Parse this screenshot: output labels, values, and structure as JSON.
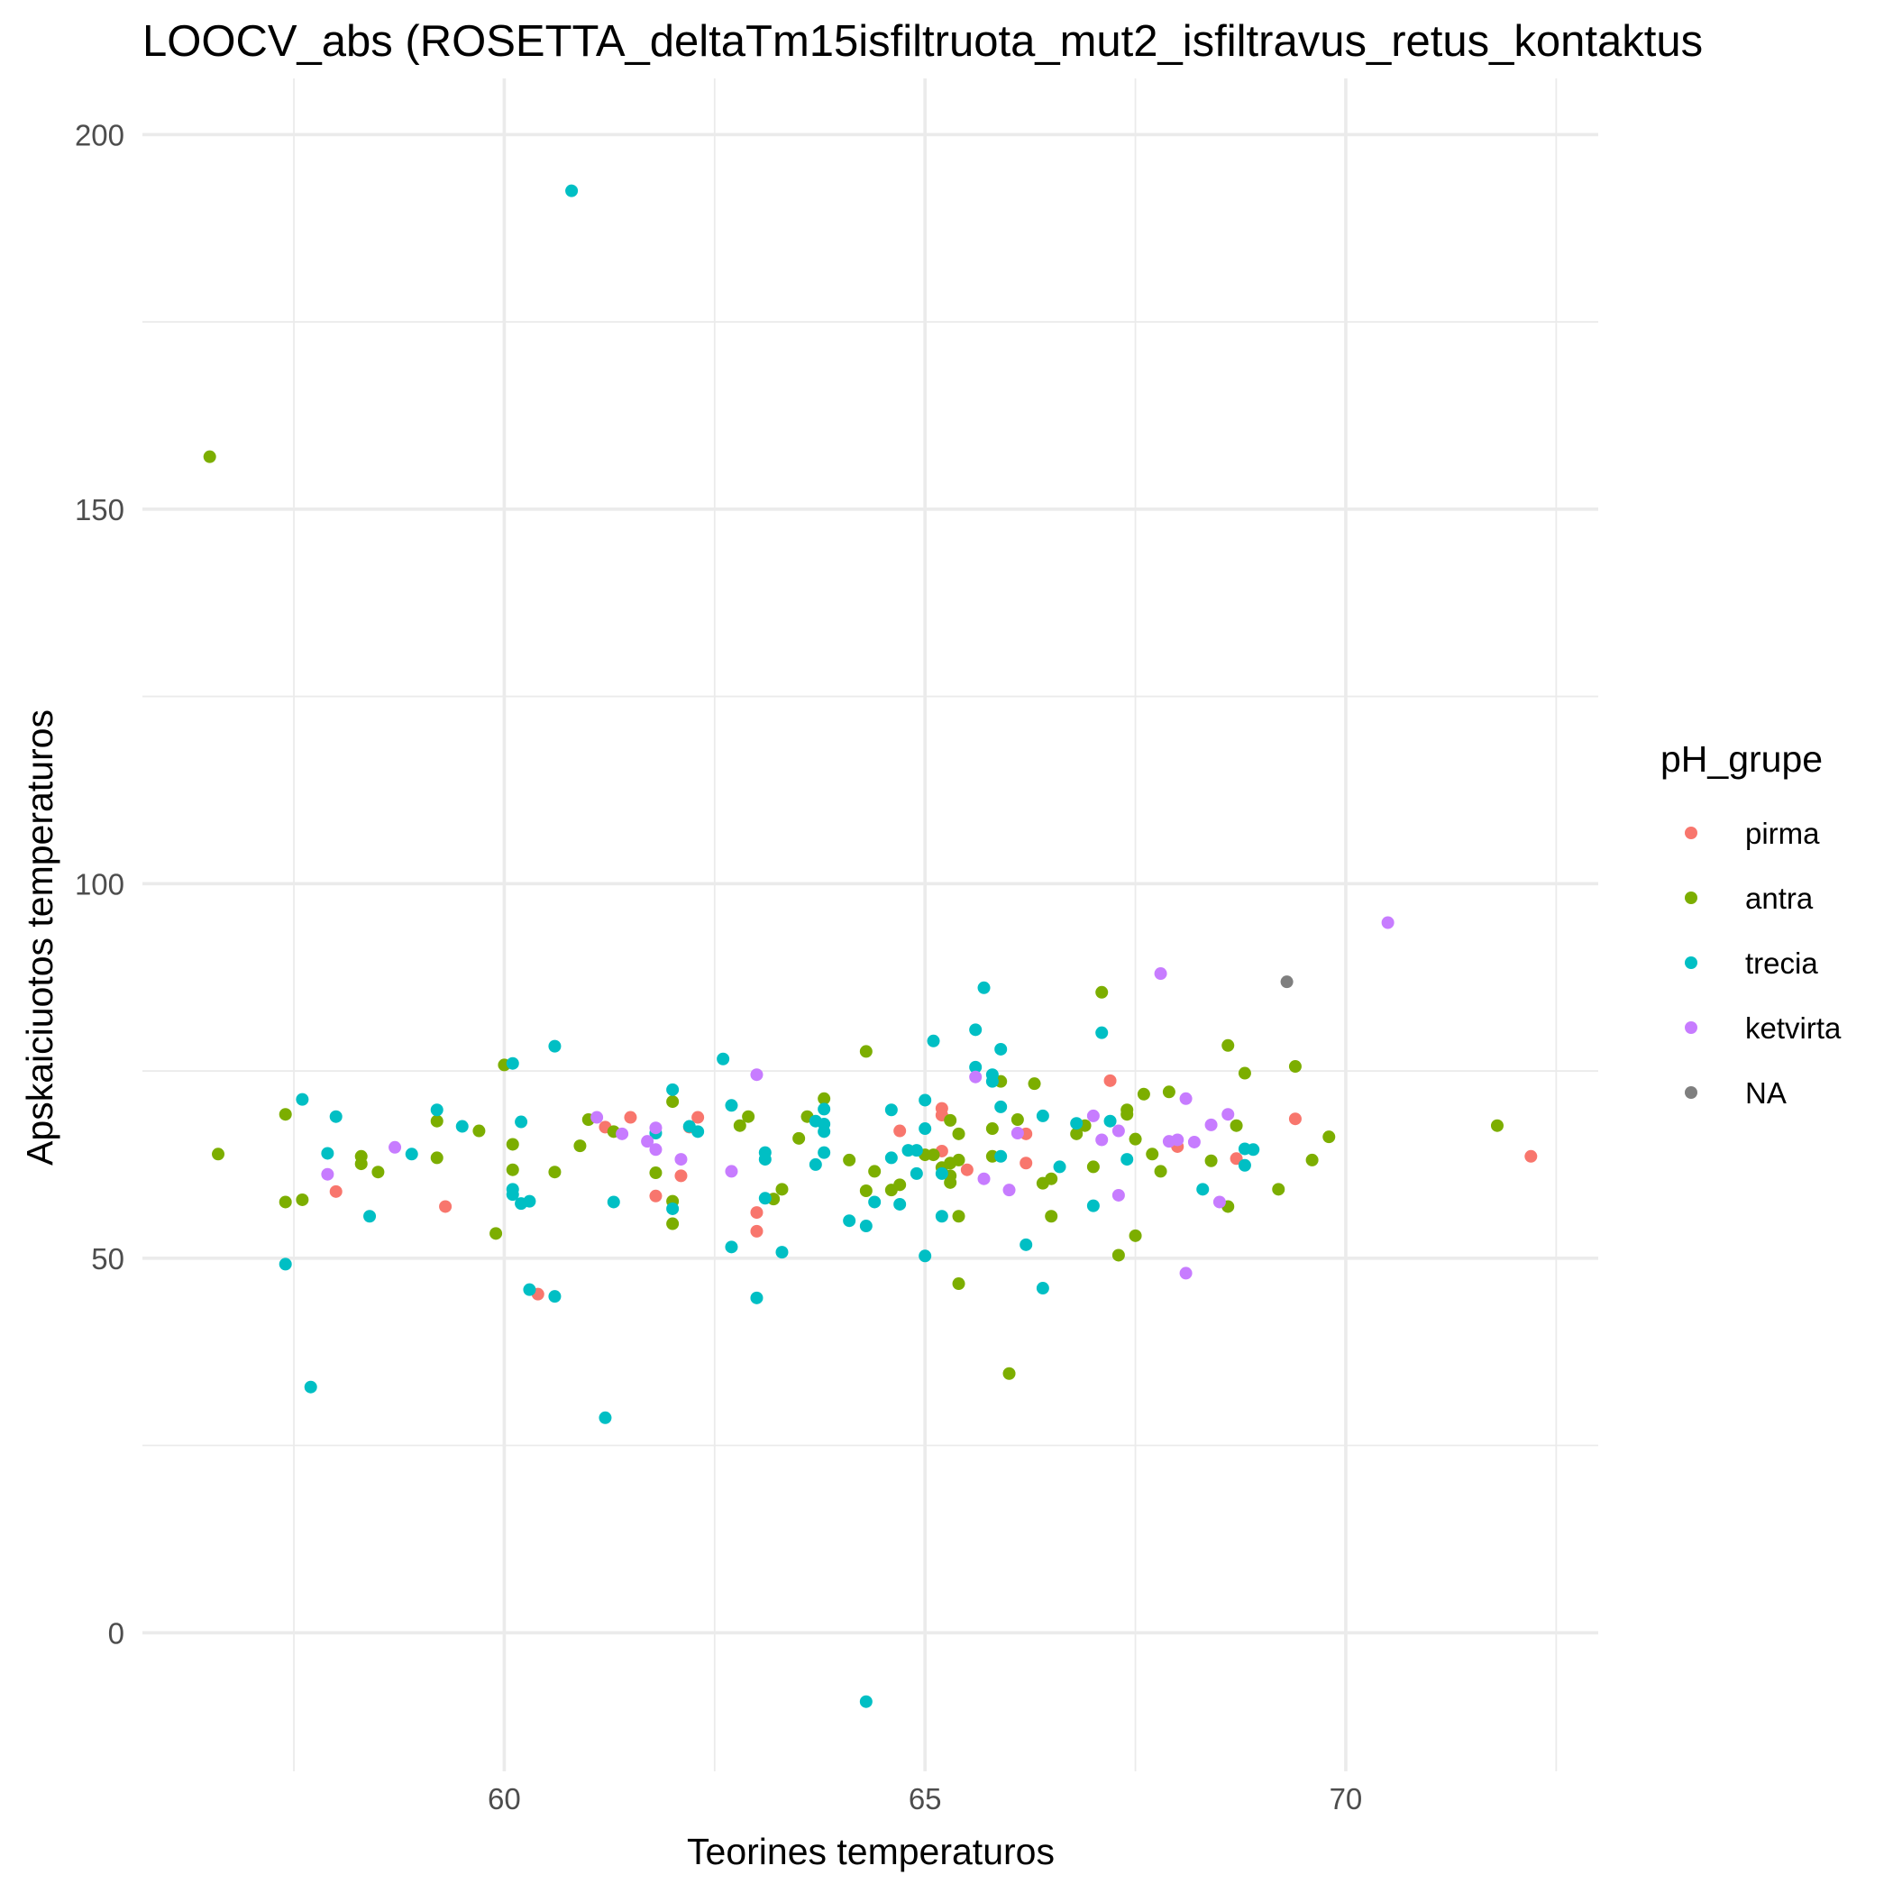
{
  "chart_data": {
    "type": "scatter",
    "title": "LOOCV_abs (ROSETTA_deltaTm15isfiltruota_mut2_isfiltravus_retus_kontaktus",
    "xlabel": "Teorines temperaturos",
    "ylabel": "Apskaiciuotos temperaturos",
    "xlim": [
      55.7,
      73.0
    ],
    "ylim": [
      -18.5,
      207.5
    ],
    "x_ticks": [
      60,
      65,
      70
    ],
    "y_ticks": [
      0,
      50,
      100,
      150,
      200
    ],
    "grid": true,
    "legend": {
      "title": "pH_grupe",
      "position": "right",
      "entries": [
        "pirma",
        "antra",
        "trecia",
        "ketvirta",
        "NA"
      ]
    },
    "series": [
      {
        "name": "pirma",
        "color": "#F8766D",
        "points": [
          [
            58.0,
            58.9
          ],
          [
            59.3,
            56.9
          ],
          [
            60.4,
            45.2
          ],
          [
            61.2,
            67.5
          ],
          [
            61.5,
            68.8
          ],
          [
            61.8,
            58.3
          ],
          [
            62.1,
            61.0
          ],
          [
            62.2,
            67.5
          ],
          [
            62.3,
            68.8
          ],
          [
            63.0,
            56.1
          ],
          [
            63.0,
            53.6
          ],
          [
            64.7,
            67.0
          ],
          [
            65.2,
            70.0
          ],
          [
            65.2,
            69.1
          ],
          [
            65.2,
            64.3
          ],
          [
            65.5,
            61.8
          ],
          [
            66.2,
            66.6
          ],
          [
            66.2,
            62.7
          ],
          [
            67.2,
            73.7
          ],
          [
            68.0,
            64.9
          ],
          [
            68.7,
            63.3
          ],
          [
            69.4,
            68.6
          ],
          [
            72.2,
            63.6
          ]
        ]
      },
      {
        "name": "antra",
        "color": "#7CAE00",
        "points": [
          [
            56.5,
            157.0
          ],
          [
            56.6,
            63.9
          ],
          [
            57.4,
            69.2
          ],
          [
            57.4,
            57.5
          ],
          [
            57.6,
            57.8
          ],
          [
            58.3,
            62.6
          ],
          [
            58.3,
            63.6
          ],
          [
            58.5,
            61.5
          ],
          [
            59.2,
            68.3
          ],
          [
            59.2,
            63.4
          ],
          [
            59.7,
            67.0
          ],
          [
            59.9,
            53.3
          ],
          [
            60.0,
            75.8
          ],
          [
            60.1,
            61.8
          ],
          [
            60.1,
            65.2
          ],
          [
            60.6,
            61.5
          ],
          [
            60.9,
            65.0
          ],
          [
            61.0,
            68.5
          ],
          [
            61.3,
            66.9
          ],
          [
            61.8,
            61.4
          ],
          [
            62.0,
            70.9
          ],
          [
            62.0,
            57.6
          ],
          [
            62.0,
            54.6
          ],
          [
            62.8,
            67.7
          ],
          [
            62.9,
            68.9
          ],
          [
            63.2,
            57.9
          ],
          [
            63.3,
            59.2
          ],
          [
            63.5,
            66.0
          ],
          [
            63.6,
            68.9
          ],
          [
            63.8,
            71.3
          ],
          [
            64.1,
            63.1
          ],
          [
            64.3,
            77.6
          ],
          [
            64.3,
            59.0
          ],
          [
            64.4,
            61.6
          ],
          [
            64.6,
            59.1
          ],
          [
            64.7,
            59.8
          ],
          [
            65.0,
            63.8
          ],
          [
            65.1,
            63.8
          ],
          [
            65.2,
            62.1
          ],
          [
            65.3,
            62.7
          ],
          [
            65.3,
            68.4
          ],
          [
            65.3,
            61.0
          ],
          [
            65.3,
            60.1
          ],
          [
            65.4,
            66.6
          ],
          [
            65.4,
            63.1
          ],
          [
            65.4,
            55.6
          ],
          [
            65.4,
            46.6
          ],
          [
            65.8,
            63.6
          ],
          [
            65.8,
            67.3
          ],
          [
            65.9,
            73.6
          ],
          [
            66.0,
            34.6
          ],
          [
            66.1,
            68.5
          ],
          [
            66.3,
            73.3
          ],
          [
            66.4,
            60.0
          ],
          [
            66.5,
            60.6
          ],
          [
            66.5,
            55.6
          ],
          [
            66.8,
            66.6
          ],
          [
            66.9,
            67.7
          ],
          [
            67.0,
            62.2
          ],
          [
            67.1,
            85.5
          ],
          [
            67.3,
            50.4
          ],
          [
            67.4,
            69.2
          ],
          [
            67.4,
            69.8
          ],
          [
            67.5,
            65.9
          ],
          [
            67.5,
            53.0
          ],
          [
            67.6,
            71.9
          ],
          [
            67.7,
            63.9
          ],
          [
            67.8,
            61.6
          ],
          [
            67.9,
            72.2
          ],
          [
            68.4,
            63.0
          ],
          [
            68.6,
            56.9
          ],
          [
            68.6,
            78.4
          ],
          [
            68.7,
            67.7
          ],
          [
            68.8,
            74.7
          ],
          [
            69.2,
            59.2
          ],
          [
            69.4,
            75.6
          ],
          [
            69.6,
            63.1
          ],
          [
            69.8,
            66.2
          ],
          [
            71.8,
            67.7
          ]
        ]
      },
      {
        "name": "trecia",
        "color": "#00BFC4",
        "points": [
          [
            57.4,
            49.2
          ],
          [
            57.6,
            71.2
          ],
          [
            57.7,
            32.8
          ],
          [
            57.9,
            64.0
          ],
          [
            58.0,
            68.9
          ],
          [
            58.4,
            55.6
          ],
          [
            58.9,
            63.9
          ],
          [
            59.2,
            69.8
          ],
          [
            59.5,
            67.6
          ],
          [
            60.1,
            76.0
          ],
          [
            60.1,
            59.2
          ],
          [
            60.1,
            58.5
          ],
          [
            60.2,
            57.3
          ],
          [
            60.2,
            68.2
          ],
          [
            60.3,
            57.6
          ],
          [
            60.3,
            45.8
          ],
          [
            60.6,
            78.3
          ],
          [
            60.6,
            44.9
          ],
          [
            60.8,
            192.5
          ],
          [
            61.2,
            28.7
          ],
          [
            61.3,
            57.5
          ],
          [
            61.8,
            66.7
          ],
          [
            62.0,
            72.5
          ],
          [
            62.0,
            56.6
          ],
          [
            62.2,
            67.6
          ],
          [
            62.3,
            66.9
          ],
          [
            62.6,
            76.6
          ],
          [
            62.7,
            70.4
          ],
          [
            62.7,
            51.5
          ],
          [
            63.0,
            44.7
          ],
          [
            63.1,
            58.0
          ],
          [
            63.1,
            64.1
          ],
          [
            63.1,
            63.2
          ],
          [
            63.3,
            50.8
          ],
          [
            63.7,
            68.3
          ],
          [
            63.7,
            62.5
          ],
          [
            63.8,
            69.9
          ],
          [
            63.8,
            67.9
          ],
          [
            63.8,
            66.9
          ],
          [
            63.8,
            64.1
          ],
          [
            64.1,
            55.0
          ],
          [
            64.3,
            54.3
          ],
          [
            64.3,
            -9.2
          ],
          [
            64.4,
            57.5
          ],
          [
            64.6,
            69.8
          ],
          [
            64.6,
            63.4
          ],
          [
            64.7,
            57.2
          ],
          [
            64.8,
            64.4
          ],
          [
            64.9,
            64.4
          ],
          [
            64.9,
            61.3
          ],
          [
            65.0,
            71.1
          ],
          [
            65.0,
            67.3
          ],
          [
            65.0,
            50.3
          ],
          [
            65.1,
            79.0
          ],
          [
            65.2,
            61.3
          ],
          [
            65.2,
            55.6
          ],
          [
            65.6,
            75.5
          ],
          [
            65.6,
            80.5
          ],
          [
            65.7,
            86.1
          ],
          [
            65.8,
            74.5
          ],
          [
            65.8,
            73.6
          ],
          [
            65.9,
            77.9
          ],
          [
            65.9,
            70.2
          ],
          [
            65.9,
            63.6
          ],
          [
            66.2,
            51.8
          ],
          [
            66.4,
            69.0
          ],
          [
            66.4,
            46.0
          ],
          [
            66.6,
            62.2
          ],
          [
            66.8,
            68.0
          ],
          [
            67.0,
            57.0
          ],
          [
            67.1,
            80.1
          ],
          [
            67.2,
            68.3
          ],
          [
            67.4,
            63.2
          ],
          [
            68.3,
            59.2
          ],
          [
            68.8,
            64.6
          ],
          [
            68.8,
            62.4
          ],
          [
            68.9,
            64.5
          ]
        ]
      },
      {
        "name": "ketvirta",
        "color": "#C77CFF",
        "points": [
          [
            57.9,
            61.2
          ],
          [
            58.7,
            64.8
          ],
          [
            61.1,
            68.8
          ],
          [
            61.4,
            66.6
          ],
          [
            61.7,
            65.6
          ],
          [
            61.8,
            67.4
          ],
          [
            61.8,
            64.5
          ],
          [
            62.1,
            63.2
          ],
          [
            62.7,
            61.6
          ],
          [
            63.0,
            74.5
          ],
          [
            65.6,
            74.2
          ],
          [
            65.7,
            60.6
          ],
          [
            66.0,
            59.1
          ],
          [
            66.1,
            66.7
          ],
          [
            67.0,
            69.0
          ],
          [
            67.1,
            65.8
          ],
          [
            67.3,
            67.0
          ],
          [
            67.3,
            58.4
          ],
          [
            67.8,
            88.0
          ],
          [
            67.9,
            65.6
          ],
          [
            68.0,
            65.8
          ],
          [
            68.1,
            71.3
          ],
          [
            68.1,
            48.0
          ],
          [
            68.2,
            65.5
          ],
          [
            68.4,
            67.8
          ],
          [
            68.5,
            57.5
          ],
          [
            68.6,
            69.2
          ],
          [
            70.5,
            94.8
          ]
        ]
      },
      {
        "name": "NA",
        "color": "#7F7F7F",
        "points": [
          [
            69.3,
            86.9
          ]
        ]
      }
    ]
  }
}
